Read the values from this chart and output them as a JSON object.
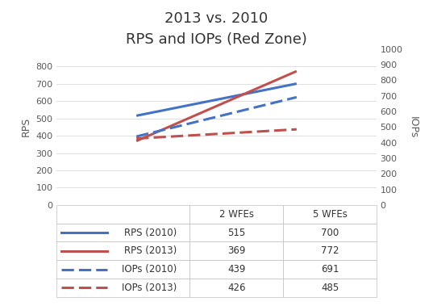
{
  "title_line1": "2013 vs. 2010",
  "title_line2": "RPS and IOPs (Red Zone)",
  "x_labels": [
    "2 WFEs",
    "5 WFEs"
  ],
  "x_values": [
    1,
    2
  ],
  "rps_2010": [
    515,
    700
  ],
  "rps_2013": [
    369,
    772
  ],
  "iops_2010": [
    439,
    691
  ],
  "iops_2013": [
    426,
    485
  ],
  "color_blue": "#4472C4",
  "color_red": "#C0504D",
  "ylabel_left": "RPS",
  "ylabel_right": "IOPs",
  "ylim_left": [
    0,
    900
  ],
  "ylim_right": [
    0,
    1000
  ],
  "yticks_left": [
    0,
    100,
    200,
    300,
    400,
    500,
    600,
    700,
    800
  ],
  "yticks_right": [
    0,
    100,
    200,
    300,
    400,
    500,
    600,
    700,
    800,
    900,
    1000
  ],
  "legend_labels": [
    "RPS (2010)",
    "RPS (2013)",
    "IOPs (2010)",
    "IOPs (2013)"
  ],
  "table_headers": [
    "",
    "2 WFEs",
    "5 WFEs"
  ],
  "table_row_data": [
    [
      "515",
      "700"
    ],
    [
      "369",
      "772"
    ],
    [
      "439",
      "691"
    ],
    [
      "426",
      "485"
    ]
  ],
  "bg_color": "#FFFFFF",
  "line_width": 2.2,
  "grid_color": "#D9D9D9",
  "text_color": "#595959",
  "table_edge_color": "#BFBFBF",
  "dashes_solid": [
    1,
    0
  ],
  "dashes_dash": [
    5,
    2
  ]
}
